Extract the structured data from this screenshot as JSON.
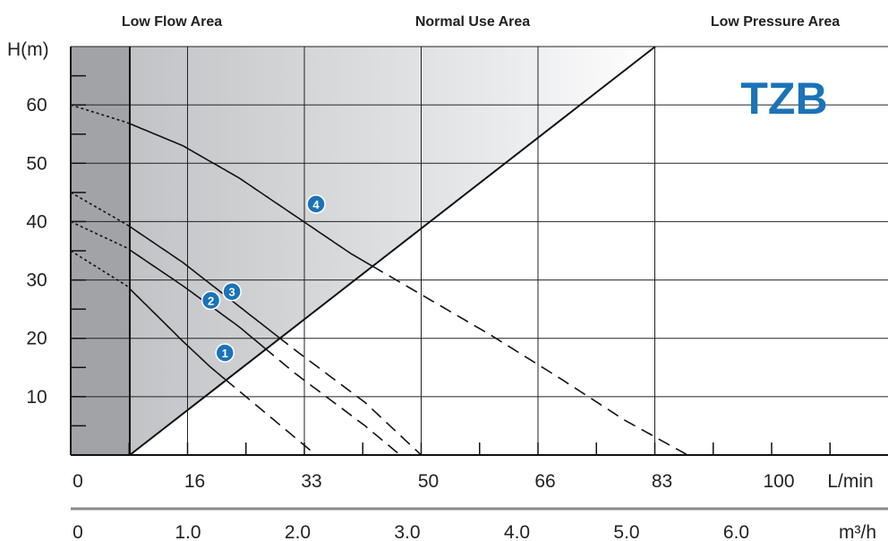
{
  "chart_data": {
    "type": "line",
    "brand_label": "TZB",
    "brand_color": "#1a73b8",
    "marker_color": "#1a73b8",
    "region_labels": [
      "Low Flow Area",
      "Normal Use Area",
      "Low Pressure Area"
    ],
    "ylabel": "H(m)",
    "ylim": [
      0,
      70
    ],
    "yticks": [
      10,
      20,
      30,
      40,
      50,
      60
    ],
    "x_axis_primary": {
      "unit": "L/min",
      "ticks": [
        "0",
        "16",
        "33",
        "50",
        "66",
        "83",
        "100"
      ]
    },
    "x_axis_secondary": {
      "unit": "m³/h",
      "ticks": [
        "0",
        "1.0",
        "2.0",
        "3.0",
        "4.0",
        "5.0",
        "6.0"
      ]
    },
    "xlim": [
      0,
      100
    ],
    "grid": true,
    "series": [
      {
        "name": "1",
        "points": [
          [
            0,
            35
          ],
          [
            8,
            29
          ],
          [
            16,
            19.5
          ],
          [
            20,
            15
          ],
          [
            25,
            10
          ],
          [
            35,
            0
          ]
        ],
        "marker_at": [
          22,
          17.5
        ]
      },
      {
        "name": "2",
        "points": [
          [
            0,
            40
          ],
          [
            8,
            35.5
          ],
          [
            16,
            29
          ],
          [
            24,
            22
          ],
          [
            32,
            14
          ],
          [
            42,
            5
          ],
          [
            47,
            0
          ]
        ],
        "marker_at": [
          20,
          26.5
        ]
      },
      {
        "name": "3",
        "points": [
          [
            0,
            45
          ],
          [
            8,
            39.5
          ],
          [
            16,
            33
          ],
          [
            24,
            25.5
          ],
          [
            32,
            18
          ],
          [
            42,
            9
          ],
          [
            50,
            0
          ]
        ],
        "marker_at": [
          23,
          28
        ]
      },
      {
        "name": "4",
        "points": [
          [
            0,
            60
          ],
          [
            8,
            57
          ],
          [
            16,
            53
          ],
          [
            24,
            47.5
          ],
          [
            32,
            41
          ],
          [
            40,
            34.5
          ],
          [
            50,
            27.5
          ],
          [
            60,
            20.5
          ],
          [
            70,
            13
          ],
          [
            79,
            6
          ],
          [
            88,
            0
          ]
        ],
        "marker_at": [
          35,
          43
        ]
      }
    ]
  }
}
